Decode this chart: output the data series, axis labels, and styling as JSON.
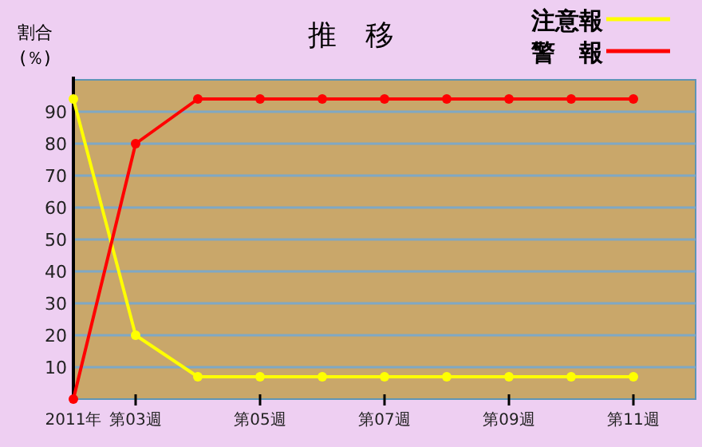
{
  "chart_data": {
    "type": "line",
    "title": "推　移",
    "ylabel": "割合 (％)",
    "categories": [
      "2011年",
      "第03週",
      null,
      "第05週",
      null,
      "第07週",
      null,
      "第09週",
      null,
      "第11週"
    ],
    "series": [
      {
        "name": "注意報",
        "color": "#ffff00",
        "values": [
          94,
          20,
          7,
          7,
          7,
          7,
          7,
          7,
          7,
          7
        ]
      },
      {
        "name": "警　報",
        "color": "#ff0000",
        "values": [
          0,
          80,
          94,
          94,
          94,
          94,
          94,
          94,
          94,
          94
        ]
      }
    ],
    "ylim": [
      0,
      100
    ],
    "yticks": [
      10,
      20,
      30,
      40,
      50,
      60,
      70,
      80,
      90
    ],
    "grid": "y",
    "legend": "top right",
    "marker": "circle",
    "line_style": "solid"
  }
}
